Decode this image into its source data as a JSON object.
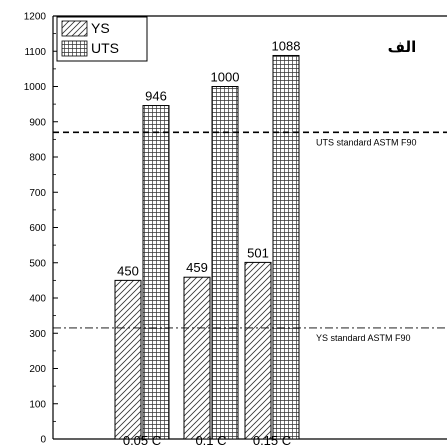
{
  "corner_label": "الف",
  "chart_data": {
    "type": "bar",
    "categories": [
      "0.05 C",
      "0.1 C",
      "0.15 C"
    ],
    "series": [
      {
        "name": "YS",
        "values": [
          450,
          459,
          501
        ],
        "pattern": "diagonal-hatch"
      },
      {
        "name": "UTS",
        "values": [
          946,
          1000,
          1088
        ],
        "pattern": "grid-hatch"
      }
    ],
    "data_labels": [
      [
        "450",
        "459",
        "501"
      ],
      [
        "946",
        "1000",
        "1088"
      ]
    ],
    "y_ticks": [
      "0",
      "100",
      "200",
      "300",
      "400",
      "500",
      "600",
      "700",
      "800",
      "900",
      "1000",
      "1100",
      "1200"
    ],
    "ylim": [
      0,
      1200
    ],
    "xlabel": "",
    "ylabel": "",
    "title": "",
    "legend_position": "top-left",
    "grid": false,
    "reference_lines": [
      {
        "label": "UTS standard ASTM F90",
        "value": 870,
        "style": "dashed"
      },
      {
        "label": "YS standard ASTM F90",
        "value": 315,
        "style": "dash-dot"
      }
    ]
  }
}
